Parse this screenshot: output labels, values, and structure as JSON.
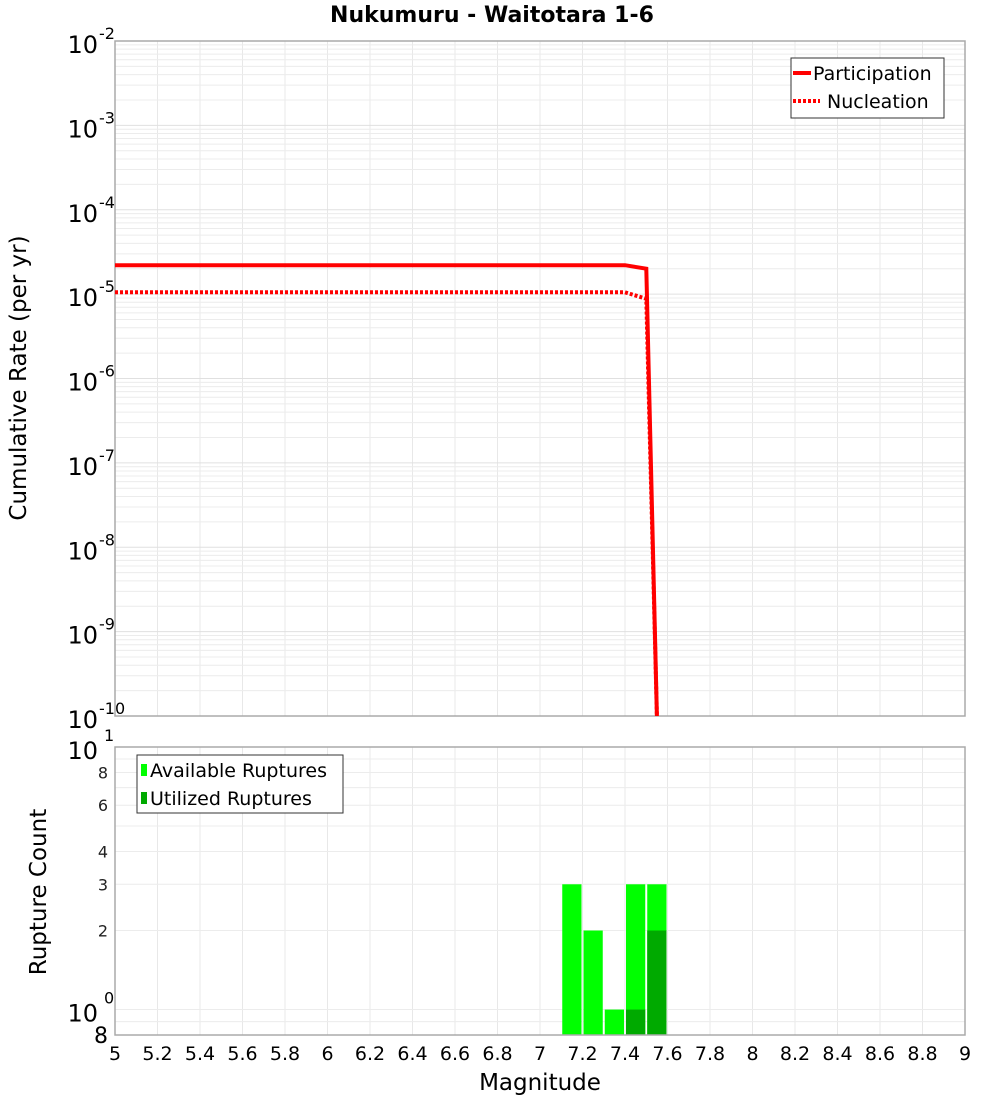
{
  "chart_data": [
    {
      "type": "line",
      "title": "Nukumuru - Waitotara 1-6",
      "xlabel": "Magnitude",
      "ylabel": "Cumulative Rate (per yr)",
      "xlim": [
        5,
        9
      ],
      "ylim": [
        1e-10,
        0.01
      ],
      "yscale": "log",
      "grid": true,
      "legend_position": "upper right",
      "x_ticks": [
        "5",
        "5.2",
        "5.4",
        "5.6",
        "5.8",
        "6",
        "6.2",
        "6.4",
        "6.6",
        "6.8",
        "7",
        "7.2",
        "7.4",
        "7.6",
        "7.8",
        "8",
        "8.2",
        "8.4",
        "8.6",
        "8.8",
        "9"
      ],
      "y_ticks": [
        {
          "base": "10",
          "exp": "-2"
        },
        {
          "base": "10",
          "exp": "-3"
        },
        {
          "base": "10",
          "exp": "-4"
        },
        {
          "base": "10",
          "exp": "-5"
        },
        {
          "base": "10",
          "exp": "-6"
        },
        {
          "base": "10",
          "exp": "-7"
        },
        {
          "base": "10",
          "exp": "-8"
        },
        {
          "base": "10",
          "exp": "-9"
        },
        {
          "base": "10",
          "exp": "-10"
        }
      ],
      "series": [
        {
          "name": "Participation",
          "style": "solid",
          "color": "#ff0000",
          "x": [
            5.0,
            7.4,
            7.5,
            7.55
          ],
          "values": [
            2.2e-05,
            2.2e-05,
            2e-05,
            1e-10
          ]
        },
        {
          "name": "Nucleation",
          "style": "dotted",
          "color": "#ff0000",
          "x": [
            5.0,
            7.4,
            7.5,
            7.55
          ],
          "values": [
            1.05e-05,
            1.05e-05,
            8.8e-06,
            1e-10
          ]
        }
      ]
    },
    {
      "type": "bar",
      "title": "",
      "xlabel": "Magnitude",
      "ylabel": "Rupture Count",
      "xlim": [
        5,
        9
      ],
      "ylim": [
        0.8,
        10
      ],
      "yscale": "log",
      "grid": true,
      "legend_position": "upper left",
      "y_ticks": [
        {
          "label": "10",
          "exp": "1",
          "value": 10
        },
        {
          "label": "8",
          "value": 8
        },
        {
          "label": "6",
          "value": 6
        },
        {
          "label": "4",
          "value": 4
        },
        {
          "label": "3",
          "value": 3
        },
        {
          "label": "2",
          "value": 2
        },
        {
          "label": "10",
          "exp": "0",
          "value": 1
        },
        {
          "label": "8",
          "value": 0.8
        }
      ],
      "categories": [
        "7.1-7.2",
        "7.2-7.3",
        "7.3-7.4",
        "7.4-7.5",
        "7.5-7.6"
      ],
      "bin_edges": [
        7.1,
        7.2,
        7.3,
        7.4,
        7.5,
        7.6
      ],
      "series": [
        {
          "name": "Available Ruptures",
          "color": "#00ff00",
          "values": [
            3,
            2,
            1,
            3,
            3
          ]
        },
        {
          "name": "Utilized Ruptures",
          "color": "#00aa00",
          "values": [
            0,
            0,
            0,
            1,
            2
          ]
        }
      ]
    }
  ],
  "legend_top": [
    "Participation",
    "Nucleation"
  ],
  "legend_bottom": [
    "Available Ruptures",
    "Utilized Ruptures"
  ]
}
